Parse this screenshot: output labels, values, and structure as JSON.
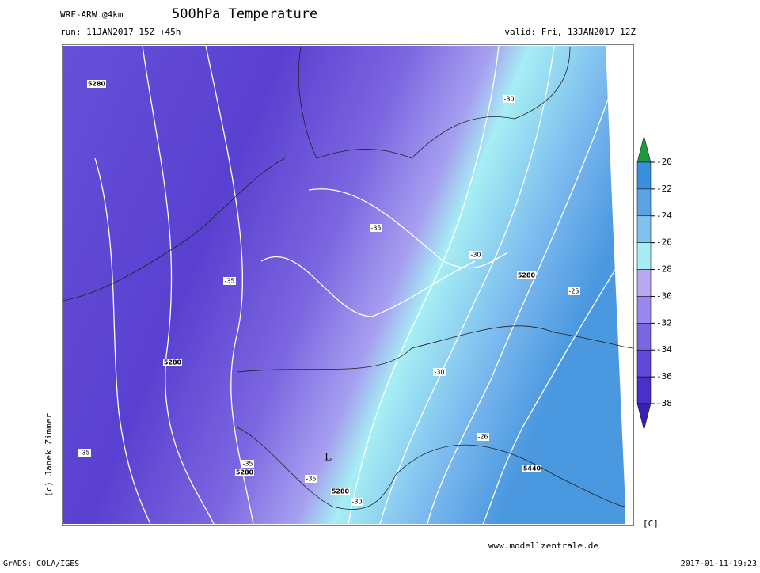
{
  "header": {
    "model": "WRF-ARW @4km",
    "title": "500hPa Temperature",
    "run": "run: 11JAN2017 15Z +45h",
    "valid": "valid: Fri, 13JAN2017 12Z"
  },
  "colorbar": {
    "ticks": [
      -20,
      -22,
      -24,
      -26,
      -28,
      -30,
      -32,
      -34,
      -36,
      -38
    ],
    "colors": [
      "#1e9a3c",
      "#3a8fdc",
      "#5aa4e6",
      "#82c0f0",
      "#a6eef4",
      "#b8a8f0",
      "#9a88ec",
      "#7c66e0",
      "#6248d8",
      "#4a30c8",
      "#3a20b0"
    ],
    "unit": "[C]"
  },
  "map": {
    "contour_labels": [
      5280,
      -30,
      -35,
      -30,
      -35,
      5280,
      -25,
      5280,
      -30,
      -26,
      -35,
      -35,
      5280,
      -35,
      5280,
      -30,
      5440
    ],
    "low_marker": "L",
    "credit": "(c) Janek Zimmer"
  },
  "footer": {
    "software": "GrADS: COLA/IGES",
    "website": "www.modellzentrale.de",
    "timestamp": "2017-01-11-19:23"
  }
}
